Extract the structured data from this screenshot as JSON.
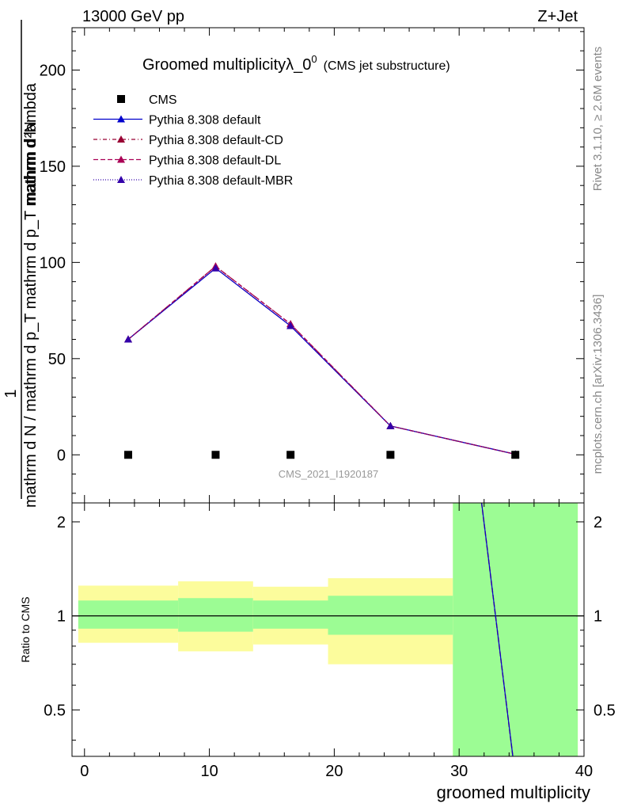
{
  "header": {
    "energy_label": "13000 GeV pp",
    "process_label": "Z+Jet"
  },
  "side_labels": {
    "rivet": "Rivet 3.1.10, ≥ 2.6M events",
    "mcplots": "mcplots.cern.ch [arXiv:1306.3436]"
  },
  "chart_data": {
    "type": "line",
    "title_main": "Groomed multiplicityλ_0",
    "title_sup": "0",
    "title_sub": "(CMS jet substructure)",
    "watermark": "CMS_2021_I1920187",
    "xlabel": "groomed multiplicity",
    "ylabel_top": "1",
    "ylabel_num": "mathrm d²N",
    "ylabel_den": "mathrm d N / mathrm d p_T mathrm d p_T mathrm d lambda",
    "ratio_ylabel": "Ratio to CMS",
    "xlim": [
      -1,
      40
    ],
    "ylim": [
      -25,
      222
    ],
    "ratio_ylim": [
      0.355,
      2.3
    ],
    "x_ticks": [
      "0",
      "10",
      "20",
      "30",
      "40"
    ],
    "y_ticks": [
      "0",
      "50",
      "100",
      "150",
      "200"
    ],
    "ratio_ticks": [
      "0.5",
      "1",
      "2"
    ],
    "bins": [
      [
        -0.5,
        7.5
      ],
      [
        7.5,
        13.5
      ],
      [
        13.5,
        19.5
      ],
      [
        19.5,
        29.5
      ],
      [
        29.5,
        39.5
      ]
    ],
    "x": [
      3.5,
      10.5,
      16.5,
      24.5,
      34.5
    ],
    "data": {
      "name": "CMS",
      "values": [
        0,
        0,
        0,
        0,
        0
      ],
      "band_inner": [
        [
          0.91,
          1.12
        ],
        [
          0.89,
          1.14
        ],
        [
          0.91,
          1.12
        ],
        [
          0.87,
          1.16
        ],
        [
          0.355,
          2.3
        ]
      ],
      "band_outer": [
        [
          0.82,
          1.25
        ],
        [
          0.77,
          1.29
        ],
        [
          0.81,
          1.24
        ],
        [
          0.7,
          1.32
        ],
        [
          0.355,
          2.3
        ]
      ]
    },
    "series": [
      {
        "name": "Pythia 8.308 default",
        "values": [
          60,
          97,
          67,
          15,
          0.3
        ],
        "color": "#0000cc",
        "dash": ""
      },
      {
        "name": "Pythia 8.308 default-CD",
        "values": [
          60,
          98,
          68,
          15,
          0.3
        ],
        "color": "#990033",
        "dash": "5,3,1,3"
      },
      {
        "name": "Pythia 8.308 default-DL",
        "values": [
          60,
          98,
          68,
          15,
          0.3
        ],
        "color": "#aa0055",
        "dash": "6,3"
      },
      {
        "name": "Pythia 8.308 default-MBR",
        "values": [
          60,
          97,
          67,
          15,
          0.3
        ],
        "color": "#3300aa",
        "dash": "1,2"
      }
    ],
    "ratio_line": {
      "x": [
        31.8,
        34.3
      ],
      "y": [
        2.3,
        0.355
      ]
    },
    "colors": {
      "band_inner": "#9cfc94",
      "band_outer": "#fcfc9c"
    }
  }
}
